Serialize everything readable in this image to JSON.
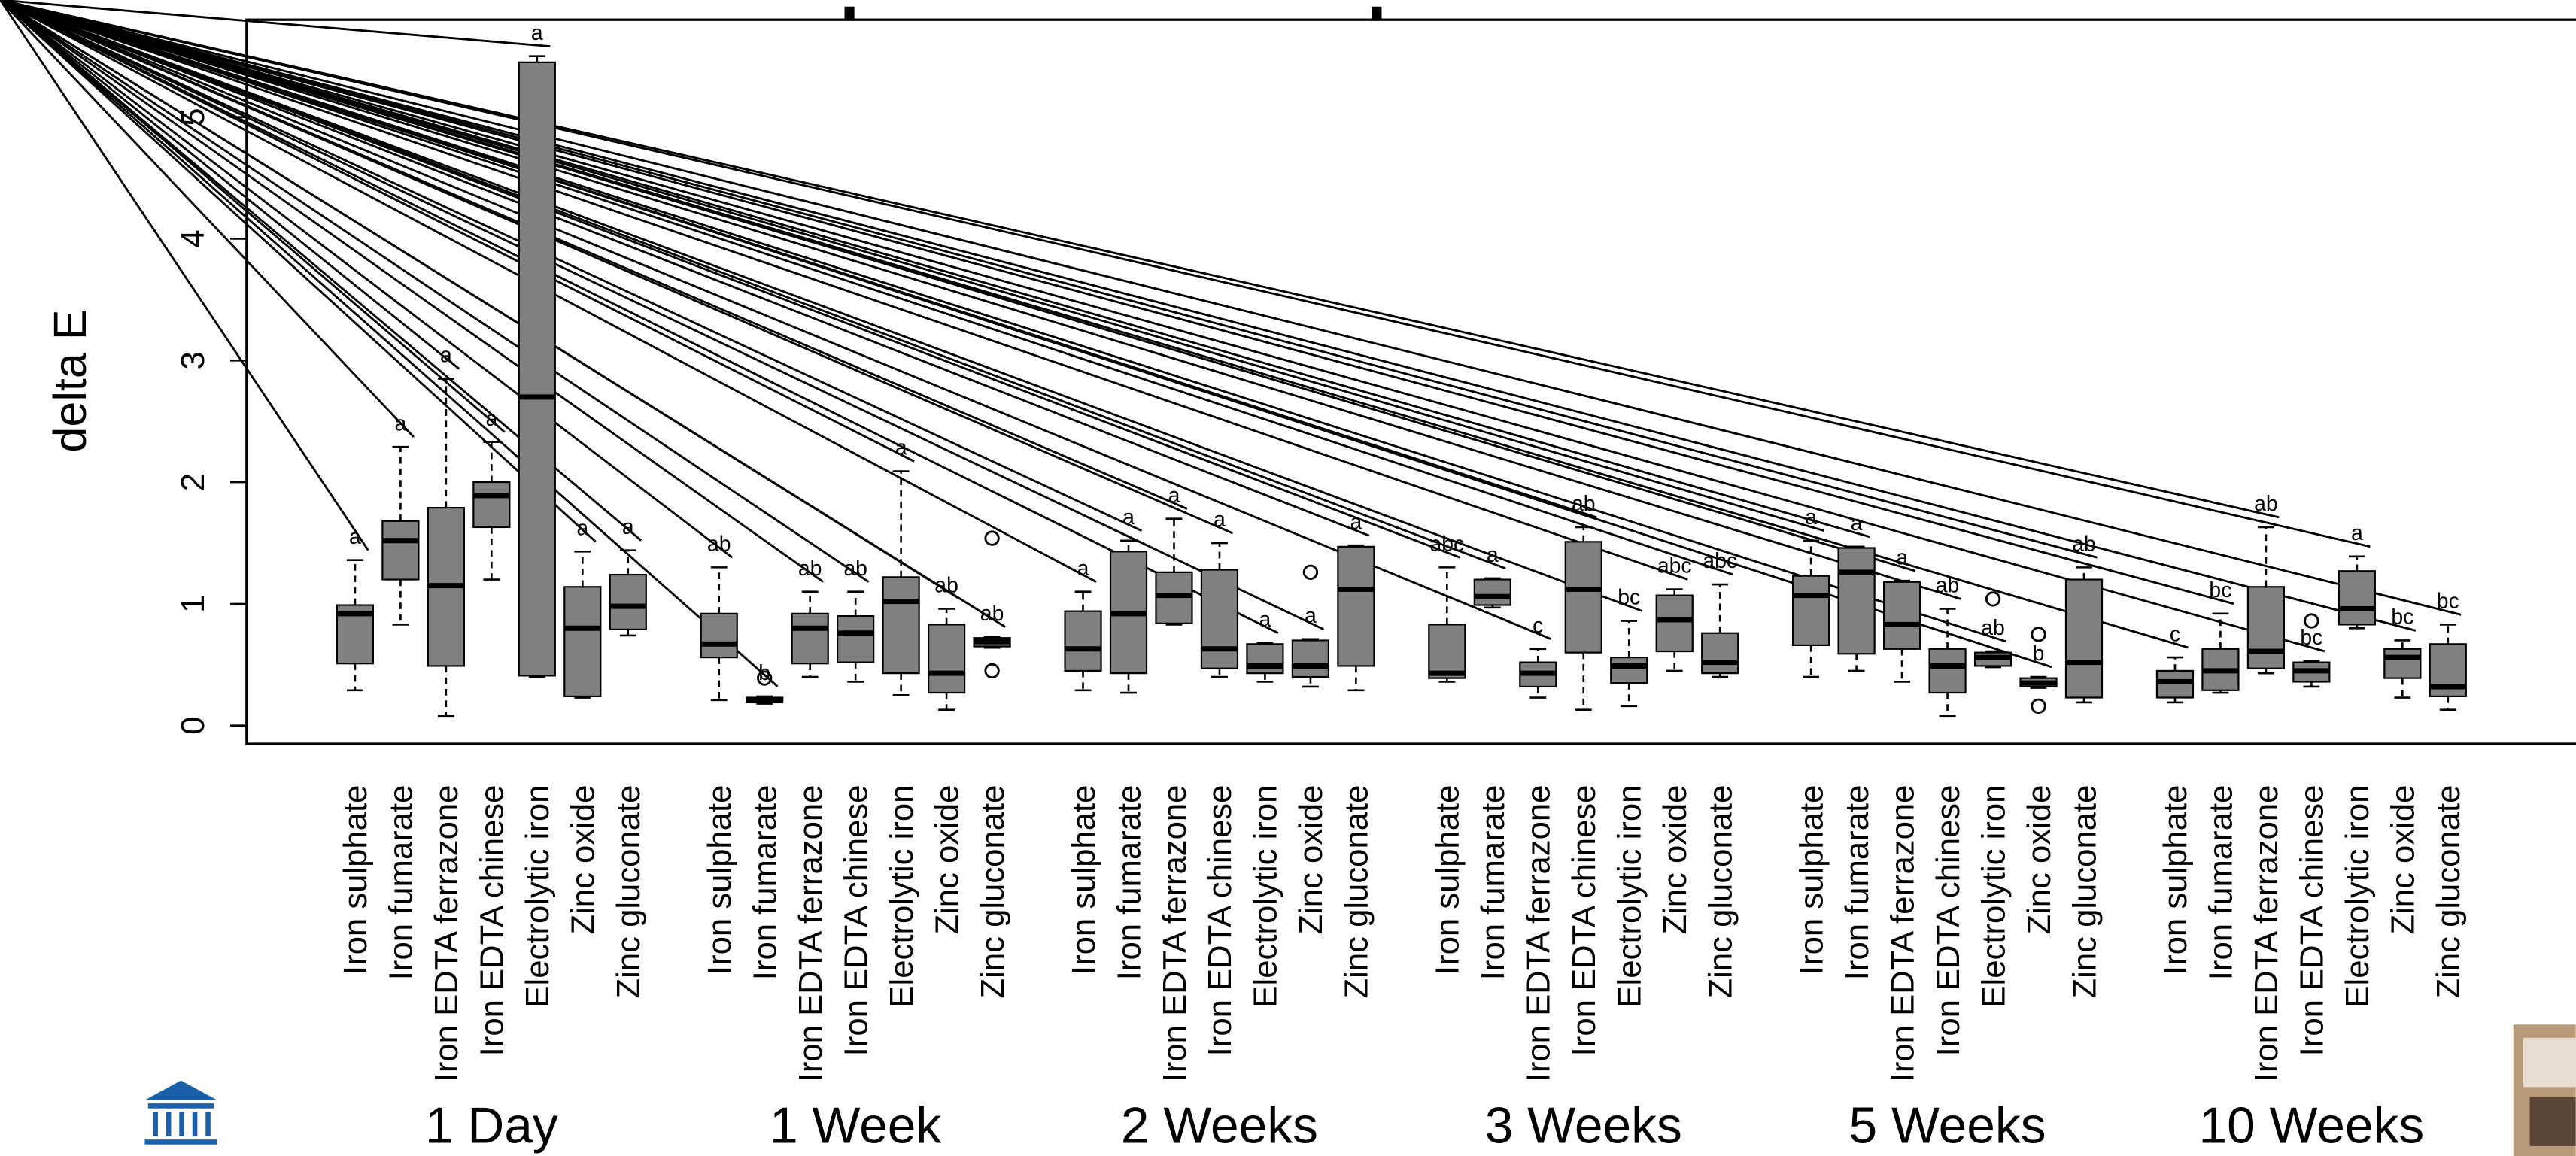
{
  "chart_data": {
    "type": "boxplot",
    "ylabel": "delta E",
    "ylim": [
      -0.15,
      5.8
    ],
    "yticks": [
      0,
      1,
      2,
      3,
      4,
      5
    ],
    "box_color": "#808080",
    "categories": [
      "Iron sulphate",
      "Iron fumarate",
      "Iron EDTA ferrazone",
      "Iron EDTA chinese",
      "Electrolytic iron",
      "Zinc oxide",
      "Zinc gluconate"
    ],
    "groups": [
      {
        "name": "1 Day",
        "boxes": [
          {
            "whislo": 0.29,
            "q1": 0.51,
            "med": 0.92,
            "q3": 0.99,
            "whishi": 1.36,
            "label": "a"
          },
          {
            "whislo": 0.83,
            "q1": 1.2,
            "med": 1.52,
            "q3": 1.68,
            "whishi": 2.29,
            "label": "a"
          },
          {
            "whislo": 0.08,
            "q1": 0.49,
            "med": 1.15,
            "q3": 1.79,
            "whishi": 2.85,
            "label": "a"
          },
          {
            "whislo": 1.2,
            "q1": 1.63,
            "med": 1.89,
            "q3": 2.0,
            "whishi": 2.33,
            "label": "a"
          },
          {
            "whislo": 0.4,
            "q1": 0.41,
            "med": 2.7,
            "q3": 5.45,
            "whishi": 5.5,
            "label": "a"
          },
          {
            "whislo": 0.23,
            "q1": 0.24,
            "med": 0.8,
            "q3": 1.14,
            "whishi": 1.43,
            "label": "a"
          },
          {
            "whislo": 0.74,
            "q1": 0.79,
            "med": 0.98,
            "q3": 1.24,
            "whishi": 1.44,
            "label": "a"
          }
        ]
      },
      {
        "name": "1 Week",
        "boxes": [
          {
            "whislo": 0.21,
            "q1": 0.56,
            "med": 0.67,
            "q3": 0.92,
            "whishi": 1.3,
            "label": "ab"
          },
          {
            "whislo": 0.18,
            "q1": 0.19,
            "med": 0.21,
            "q3": 0.23,
            "whishi": 0.24,
            "outliers": [
              0.39
            ],
            "label": "b"
          },
          {
            "whislo": 0.4,
            "q1": 0.51,
            "med": 0.8,
            "q3": 0.92,
            "whishi": 1.1,
            "label": "ab"
          },
          {
            "whislo": 0.36,
            "q1": 0.52,
            "med": 0.76,
            "q3": 0.9,
            "whishi": 1.1,
            "label": "ab"
          },
          {
            "whislo": 0.25,
            "q1": 0.43,
            "med": 1.02,
            "q3": 1.22,
            "whishi": 2.09,
            "label": "a"
          },
          {
            "whislo": 0.13,
            "q1": 0.27,
            "med": 0.43,
            "q3": 0.83,
            "whishi": 0.96,
            "label": "ab"
          },
          {
            "whislo": 0.64,
            "q1": 0.65,
            "med": 0.69,
            "q3": 0.72,
            "whishi": 0.73,
            "outliers": [
              0.45,
              1.54
            ],
            "label": "ab"
          }
        ]
      },
      {
        "name": "2 Weeks",
        "boxes": [
          {
            "whislo": 0.29,
            "q1": 0.45,
            "med": 0.63,
            "q3": 0.94,
            "whishi": 1.1,
            "label": "a"
          },
          {
            "whislo": 0.27,
            "q1": 0.43,
            "med": 0.92,
            "q3": 1.43,
            "whishi": 1.52,
            "label": "a"
          },
          {
            "whislo": 0.83,
            "q1": 0.84,
            "med": 1.07,
            "q3": 1.26,
            "whishi": 1.7,
            "label": "a"
          },
          {
            "whislo": 0.4,
            "q1": 0.47,
            "med": 0.63,
            "q3": 1.28,
            "whishi": 1.5,
            "label": "a"
          },
          {
            "whislo": 0.36,
            "q1": 0.43,
            "med": 0.49,
            "q3": 0.67,
            "whishi": 0.68,
            "label": "a"
          },
          {
            "whislo": 0.32,
            "q1": 0.4,
            "med": 0.49,
            "q3": 0.7,
            "whishi": 0.71,
            "outliers": [
              1.26
            ],
            "label": "a"
          },
          {
            "whislo": 0.29,
            "q1": 0.49,
            "med": 1.12,
            "q3": 1.47,
            "whishi": 1.48,
            "label": "a"
          }
        ]
      },
      {
        "name": "3 Weeks",
        "boxes": [
          {
            "whislo": 0.36,
            "q1": 0.39,
            "med": 0.43,
            "q3": 0.83,
            "whishi": 1.3,
            "label": "abc"
          },
          {
            "whislo": 0.97,
            "q1": 0.99,
            "med": 1.06,
            "q3": 1.2,
            "whishi": 1.21,
            "label": "a"
          },
          {
            "whislo": 0.23,
            "q1": 0.32,
            "med": 0.43,
            "q3": 0.52,
            "whishi": 0.63,
            "label": "c"
          },
          {
            "whislo": 0.13,
            "q1": 0.6,
            "med": 1.12,
            "q3": 1.51,
            "whishi": 1.63,
            "label": "ab"
          },
          {
            "whislo": 0.16,
            "q1": 0.35,
            "med": 0.49,
            "q3": 0.56,
            "whishi": 0.86,
            "label": "bc"
          },
          {
            "whislo": 0.45,
            "q1": 0.61,
            "med": 0.87,
            "q3": 1.07,
            "whishi": 1.12,
            "label": "abc"
          },
          {
            "whislo": 0.4,
            "q1": 0.43,
            "med": 0.52,
            "q3": 0.76,
            "whishi": 1.16,
            "label": "abc"
          }
        ]
      },
      {
        "name": "5 Weeks",
        "boxes": [
          {
            "whislo": 0.4,
            "q1": 0.66,
            "med": 1.07,
            "q3": 1.23,
            "whishi": 1.52,
            "label": "a"
          },
          {
            "whislo": 0.45,
            "q1": 0.59,
            "med": 1.26,
            "q3": 1.46,
            "whishi": 1.47,
            "label": "a"
          },
          {
            "whislo": 0.36,
            "q1": 0.63,
            "med": 0.83,
            "q3": 1.18,
            "whishi": 1.19,
            "label": "a"
          },
          {
            "whislo": 0.08,
            "q1": 0.27,
            "med": 0.49,
            "q3": 0.63,
            "whishi": 0.96,
            "label": "ab"
          },
          {
            "whislo": 0.48,
            "q1": 0.49,
            "med": 0.56,
            "q3": 0.6,
            "whishi": 0.61,
            "outliers": [
              1.04
            ],
            "label": "ab"
          },
          {
            "whislo": 0.31,
            "q1": 0.32,
            "med": 0.35,
            "q3": 0.39,
            "whishi": 0.4,
            "outliers": [
              0.16,
              0.75
            ],
            "label": "b"
          },
          {
            "whislo": 0.19,
            "q1": 0.23,
            "med": 0.52,
            "q3": 1.2,
            "whishi": 1.3,
            "label": "ab"
          }
        ]
      },
      {
        "name": "10 Weeks",
        "boxes": [
          {
            "whislo": 0.19,
            "q1": 0.23,
            "med": 0.36,
            "q3": 0.45,
            "whishi": 0.56,
            "label": "c"
          },
          {
            "whislo": 0.27,
            "q1": 0.29,
            "med": 0.45,
            "q3": 0.63,
            "whishi": 0.92,
            "label": "bc"
          },
          {
            "whislo": 0.43,
            "q1": 0.47,
            "med": 0.61,
            "q3": 1.14,
            "whishi": 1.63,
            "label": "ab"
          },
          {
            "whislo": 0.32,
            "q1": 0.36,
            "med": 0.45,
            "q3": 0.52,
            "whishi": 0.53,
            "outliers": [
              0.86
            ],
            "label": "bc"
          },
          {
            "whislo": 0.8,
            "q1": 0.83,
            "med": 0.96,
            "q3": 1.27,
            "whishi": 1.39,
            "label": "a"
          },
          {
            "whislo": 0.23,
            "q1": 0.39,
            "med": 0.56,
            "q3": 0.63,
            "whishi": 0.7,
            "label": "bc"
          },
          {
            "whislo": 0.13,
            "q1": 0.24,
            "med": 0.32,
            "q3": 0.67,
            "whishi": 0.83,
            "label": "bc"
          }
        ]
      }
    ]
  }
}
